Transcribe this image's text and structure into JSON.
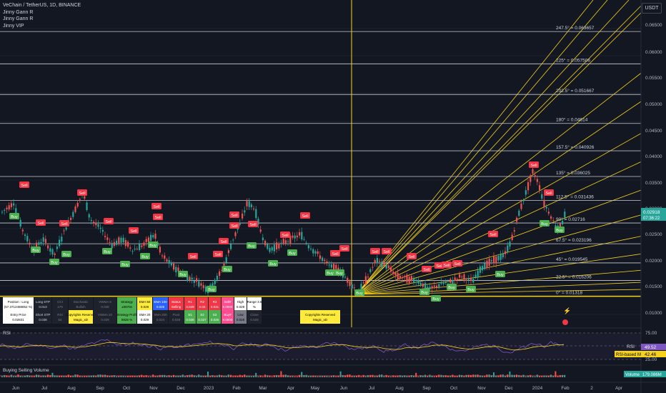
{
  "header": {
    "symbol_line": "VeChain / TetherUS, 1D, BINANCE",
    "indicators": [
      "Jinny Gann R",
      "Jinny Gann R",
      "Jinny VIP"
    ],
    "currency_button": "USDT"
  },
  "price_axis": {
    "ticks": [
      "0.06500",
      "0.06000",
      "0.05500",
      "0.05000",
      "0.04500",
      "0.04000",
      "0.03500",
      "0.03000",
      "0.02500",
      "0.02000",
      "0.01500",
      "0.01000"
    ],
    "current_price": "0.02918",
    "countdown": "07:36:22",
    "marker_price": "0.02716"
  },
  "gann_levels": [
    {
      "label": "247.5° = 0.063657"
    },
    {
      "label": "225° = 0.057506"
    },
    {
      "label": "202.5° = 0.051667"
    },
    {
      "label": "180° = 0.04614"
    },
    {
      "label": "157.5° = 0.040926"
    },
    {
      "label": "135° = 0.036025"
    },
    {
      "label": "112.5° = 0.031436"
    },
    {
      "label": "90° = 0.02716"
    },
    {
      "label": "67.5° = 0.023196"
    },
    {
      "label": "45° = 0.019545"
    },
    {
      "label": "22.5° = 0.016206"
    },
    {
      "label": "0° = 0.01318"
    }
  ],
  "signals": {
    "buy": "Buy",
    "sell": "Sell"
  },
  "info_table": {
    "row1": [
      {
        "text": "Position : Long (57.3712488852 %)",
        "bg": "#ffffff",
        "fg": "#000000"
      },
      {
        "text": "Long STP 0.013",
        "bg": "#1e222d",
        "fg": "#d1d4dc"
      },
      {
        "text": "CCI 179",
        "bg": "#1e222d",
        "fg": "#787b86"
      },
      {
        "text": "Stochastic Bullish",
        "bg": "#1e222d",
        "fg": "#787b86"
      },
      {
        "text": "VWMA 8 0.028",
        "bg": "#1e222d",
        "fg": "#787b86"
      },
      {
        "text": "Strategy ±0870s",
        "bg": "#4caf50",
        "fg": "#000000"
      },
      {
        "text": "EMA 50 0.029",
        "bg": "#ffeb3b",
        "fg": "#000000"
      },
      {
        "text": "EMA 100 0.026",
        "bg": "#2962ff",
        "fg": "#ffffff"
      },
      {
        "text": "Status Selling",
        "bg": "#f23645",
        "fg": "#ffffff"
      },
      {
        "text": "R1 0.029",
        "bg": "#f23645",
        "fg": "#ffffff"
      },
      {
        "text": "R2 0.03",
        "bg": "#f23645",
        "fg": "#ffffff"
      },
      {
        "text": "R3 0.031",
        "bg": "#f23645",
        "fg": "#ffffff"
      },
      {
        "text": "Sell# 0.0000",
        "bg": "#ff4d8f",
        "fg": "#ffffff"
      },
      {
        "text": "High 0.029",
        "bg": "#ffffff",
        "fg": "#000000"
      },
      {
        "text": "Range 3.5 %",
        "bg": "#ffffff",
        "fg": "#000000"
      }
    ],
    "row2": [
      {
        "text": "Entry Price 0.02831",
        "bg": "#ffffff",
        "fg": "#000000"
      },
      {
        "text": "Short STP 0.038",
        "bg": "#1e222d",
        "fg": "#d1d4dc"
      },
      {
        "text": "RSI 54",
        "bg": "#1e222d",
        "fg": "#787b86"
      },
      {
        "text": "Copyrights Reserved Magic_xD",
        "bg": "#ffeb3b",
        "fg": "#000000"
      },
      {
        "text": "VWMA 20 0.029",
        "bg": "#1e222d",
        "fg": "#787b86"
      },
      {
        "text": "Strategy Profit 5928 %",
        "bg": "#4caf50",
        "fg": "#000000"
      },
      {
        "text": "SMA 20 0.029",
        "bg": "#ffffff",
        "fg": "#000000"
      },
      {
        "text": "SMA 200 0.024",
        "bg": "#1e222d",
        "fg": "#787b86"
      },
      {
        "text": "Pivot 0.028",
        "bg": "#1e222d",
        "fg": "#787b86"
      },
      {
        "text": "S1 0.026",
        "bg": "#4caf50",
        "fg": "#ffffff"
      },
      {
        "text": "S2 0.027",
        "bg": "#4caf50",
        "fg": "#ffffff"
      },
      {
        "text": "S3 0.026",
        "bg": "#4caf50",
        "fg": "#ffffff"
      },
      {
        "text": "Buy# 0.0000",
        "bg": "#ff4d8f",
        "fg": "#ffffff"
      },
      {
        "text": "Low 0.028",
        "bg": "#787b86",
        "fg": "#000000"
      },
      {
        "text": "Close 0.029",
        "bg": "#1e222d",
        "fg": "#787b86"
      }
    ],
    "copyright_box": {
      "text": "Copyrights Reserved Magic_xD",
      "bg": "#ffeb3b",
      "fg": "#000000"
    }
  },
  "rsi_pane": {
    "title": "RSI",
    "ticks": [
      "75.00",
      "50.00",
      "25.00"
    ],
    "rsi_value": "49.52",
    "rsi_ma_label": "RSI-based MA",
    "rsi_ma_value": "42.46"
  },
  "volume_pane": {
    "title": "Buying Selling Volume",
    "volume_label": "Volume",
    "volume_value": "179.086M"
  },
  "time_axis": {
    "labels": [
      "Jun",
      "Jul",
      "Aug",
      "Sep",
      "Oct",
      "Nov",
      "Dec",
      "2023",
      "Feb",
      "Mar",
      "Apr",
      "May",
      "Jun",
      "Jul",
      "Aug",
      "Sep",
      "Oct",
      "Nov",
      "Dec",
      "2024",
      "Feb",
      "2",
      "Apr"
    ]
  },
  "colors": {
    "background": "#131722",
    "up": "#26a69a",
    "down": "#ef5350",
    "gann": "#f7d21a",
    "buy": "#4caf50",
    "sell": "#f23645",
    "rsi": "#7e57c2",
    "rsi_ma": "#f7d21a"
  }
}
